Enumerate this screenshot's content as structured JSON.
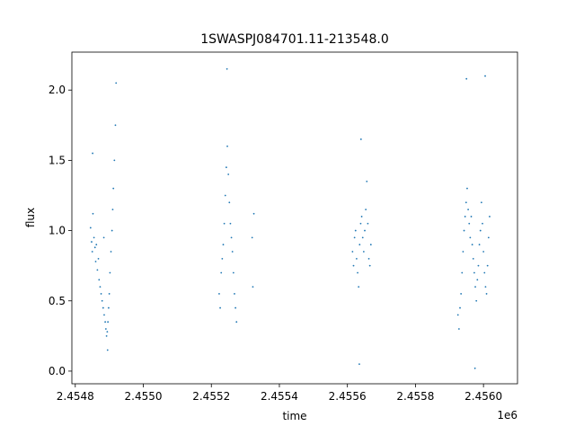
{
  "chart_data": {
    "type": "scatter",
    "title": "1SWASPJ084701.11-213548.0",
    "xlabel": "time",
    "ylabel": "flux",
    "x_offset_label": "1e6",
    "xlim": [
      2454790,
      2456100
    ],
    "ylim": [
      -0.09,
      2.27
    ],
    "x_ticks": [
      2454800,
      2455000,
      2455200,
      2455400,
      2455600,
      2455800,
      2456000
    ],
    "x_tick_labels": [
      "2.4548",
      "2.4550",
      "2.4552",
      "2.4554",
      "2.4556",
      "2.4558",
      "2.4560"
    ],
    "y_ticks": [
      0.0,
      0.5,
      1.0,
      1.5,
      2.0
    ],
    "y_tick_labels": [
      "0.0",
      "0.5",
      "1.0",
      "1.5",
      "2.0"
    ],
    "grid": false,
    "marker_color": "#1f77b4",
    "series": [
      {
        "points": [
          [
            2454845,
            1.02
          ],
          [
            2454848,
            0.92
          ],
          [
            2454850,
            0.85
          ],
          [
            2454852,
            1.12
          ],
          [
            2454855,
            0.95
          ],
          [
            2454858,
            0.88
          ],
          [
            2454860,
            0.78
          ],
          [
            2454862,
            0.9
          ],
          [
            2454865,
            0.72
          ],
          [
            2454868,
            0.8
          ],
          [
            2454870,
            0.65
          ],
          [
            2454873,
            0.6
          ],
          [
            2454876,
            0.55
          ],
          [
            2454879,
            0.5
          ],
          [
            2454882,
            0.45
          ],
          [
            2454885,
            0.4
          ],
          [
            2454888,
            0.35
          ],
          [
            2454890,
            0.3
          ],
          [
            2454892,
            0.25
          ],
          [
            2454894,
            0.28
          ],
          [
            2454896,
            0.35
          ],
          [
            2454898,
            0.45
          ],
          [
            2454900,
            0.55
          ],
          [
            2454902,
            0.7
          ],
          [
            2454905,
            0.85
          ],
          [
            2454908,
            1.0
          ],
          [
            2454910,
            1.15
          ],
          [
            2454912,
            1.3
          ],
          [
            2454915,
            1.5
          ],
          [
            2454918,
            1.75
          ],
          [
            2454920,
            2.05
          ],
          [
            2454851,
            1.55
          ],
          [
            2454884,
            0.95
          ],
          [
            2454895,
            0.15
          ],
          [
            2455223,
            0.55
          ],
          [
            2455226,
            0.45
          ],
          [
            2455229,
            0.7
          ],
          [
            2455232,
            0.8
          ],
          [
            2455235,
            0.9
          ],
          [
            2455238,
            1.05
          ],
          [
            2455241,
            1.25
          ],
          [
            2455244,
            1.45
          ],
          [
            2455247,
            1.6
          ],
          [
            2455250,
            1.4
          ],
          [
            2455253,
            1.2
          ],
          [
            2455256,
            1.05
          ],
          [
            2455259,
            0.95
          ],
          [
            2455262,
            0.85
          ],
          [
            2455265,
            0.7
          ],
          [
            2455268,
            0.55
          ],
          [
            2455271,
            0.45
          ],
          [
            2455274,
            0.35
          ],
          [
            2455246,
            2.15
          ],
          [
            2455320,
            0.95
          ],
          [
            2455322,
            0.6
          ],
          [
            2455325,
            1.12
          ],
          [
            2455615,
            0.85
          ],
          [
            2455618,
            0.75
          ],
          [
            2455621,
            0.95
          ],
          [
            2455624,
            1.0
          ],
          [
            2455627,
            0.8
          ],
          [
            2455630,
            0.7
          ],
          [
            2455633,
            0.6
          ],
          [
            2455636,
            0.9
          ],
          [
            2455639,
            1.05
          ],
          [
            2455642,
            1.1
          ],
          [
            2455645,
            0.95
          ],
          [
            2455648,
            0.85
          ],
          [
            2455651,
            1.0
          ],
          [
            2455654,
            1.15
          ],
          [
            2455657,
            1.35
          ],
          [
            2455660,
            1.05
          ],
          [
            2455663,
            0.8
          ],
          [
            2455666,
            0.75
          ],
          [
            2455669,
            0.9
          ],
          [
            2455635,
            0.05
          ],
          [
            2455640,
            1.65
          ],
          [
            2455925,
            0.4
          ],
          [
            2455928,
            0.3
          ],
          [
            2455931,
            0.45
          ],
          [
            2455934,
            0.55
          ],
          [
            2455937,
            0.7
          ],
          [
            2455940,
            0.85
          ],
          [
            2455943,
            1.0
          ],
          [
            2455946,
            1.1
          ],
          [
            2455949,
            1.2
          ],
          [
            2455952,
            1.3
          ],
          [
            2455955,
            1.15
          ],
          [
            2455958,
            1.05
          ],
          [
            2455961,
            0.95
          ],
          [
            2455964,
            1.1
          ],
          [
            2455967,
            0.9
          ],
          [
            2455970,
            0.8
          ],
          [
            2455973,
            0.7
          ],
          [
            2455976,
            0.6
          ],
          [
            2455979,
            0.5
          ],
          [
            2455982,
            0.65
          ],
          [
            2455985,
            0.75
          ],
          [
            2455988,
            0.9
          ],
          [
            2455991,
            1.0
          ],
          [
            2455994,
            1.2
          ],
          [
            2455997,
            1.05
          ],
          [
            2456000,
            0.85
          ],
          [
            2456003,
            0.7
          ],
          [
            2456006,
            0.6
          ],
          [
            2456009,
            0.55
          ],
          [
            2456012,
            0.75
          ],
          [
            2456015,
            0.95
          ],
          [
            2456018,
            1.1
          ],
          [
            2455950,
            2.08
          ],
          [
            2455975,
            0.02
          ],
          [
            2456005,
            2.1
          ]
        ]
      }
    ]
  }
}
